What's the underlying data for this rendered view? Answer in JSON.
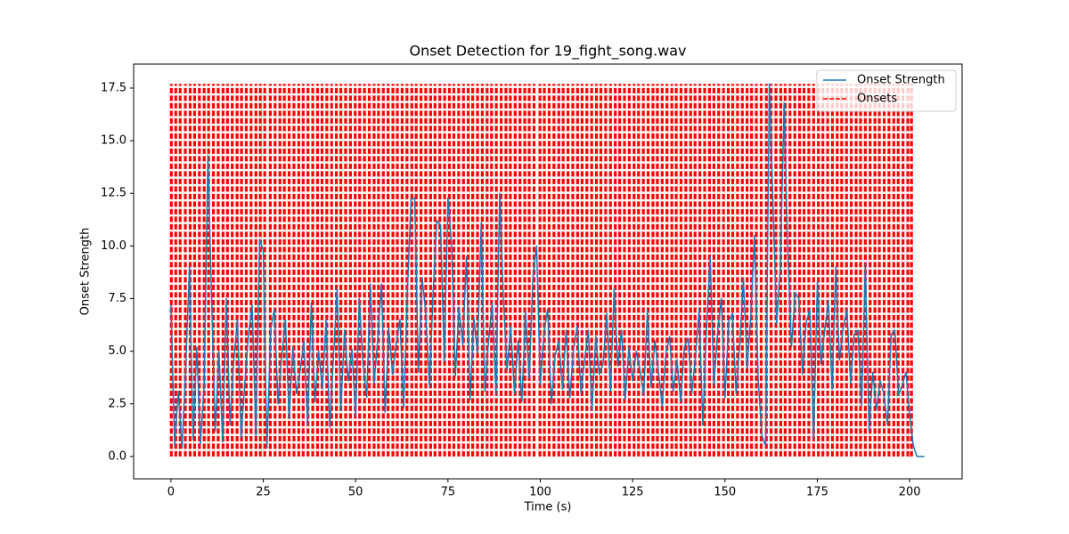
{
  "chart_data": {
    "type": "line",
    "title": "Onset Detection for 19_fight_song.wav",
    "xlabel": "Time (s)",
    "ylabel": "Onset Strength",
    "xlim": [
      -10.1,
      214.2
    ],
    "ylim": [
      -1.06,
      18.64
    ],
    "xticks": [
      0,
      25,
      50,
      75,
      100,
      125,
      150,
      175,
      200
    ],
    "yticks": [
      {
        "value": 0,
        "label": "0.0"
      },
      2.5,
      {
        "value": 5,
        "label": "5.0"
      },
      7.5,
      {
        "value": 10,
        "label": "10.0"
      },
      12.5,
      {
        "value": 15,
        "label": "15.0"
      },
      17.5
    ],
    "legend": "upper right",
    "x": [
      0,
      1,
      2,
      3,
      4,
      5,
      6,
      7,
      8,
      9,
      10,
      11,
      12,
      13,
      14,
      15,
      16,
      17,
      18,
      19,
      20,
      21,
      22,
      23,
      24,
      25,
      26,
      27,
      28,
      29,
      30,
      31,
      32,
      33,
      34,
      35,
      36,
      37,
      38,
      39,
      40,
      41,
      42,
      43,
      44,
      45,
      46,
      47,
      48,
      49,
      50,
      51,
      52,
      53,
      54,
      55,
      56,
      57,
      58,
      59,
      60,
      61,
      62,
      63,
      64,
      65,
      66,
      67,
      68,
      69,
      70,
      71,
      72,
      73,
      74,
      75,
      76,
      77,
      78,
      79,
      80,
      81,
      82,
      83,
      84,
      85,
      86,
      87,
      88,
      89,
      90,
      91,
      92,
      93,
      94,
      95,
      96,
      97,
      98,
      99,
      100,
      101,
      102,
      103,
      104,
      105,
      106,
      107,
      108,
      109,
      110,
      111,
      112,
      113,
      114,
      115,
      116,
      117,
      118,
      119,
      120,
      121,
      122,
      123,
      124,
      125,
      126,
      127,
      128,
      129,
      130,
      131,
      132,
      133,
      134,
      135,
      136,
      137,
      138,
      139,
      140,
      141,
      142,
      143,
      144,
      145,
      146,
      147,
      148,
      149,
      150,
      151,
      152,
      153,
      154,
      155,
      156,
      157,
      158,
      159,
      160,
      161,
      162,
      163,
      164,
      165,
      166,
      167,
      168,
      169,
      170,
      171,
      172,
      173,
      174,
      175,
      176,
      177,
      178,
      179,
      180,
      181,
      182,
      183,
      184,
      185,
      186,
      187,
      188,
      189,
      190,
      191,
      192,
      193,
      194,
      195,
      196,
      197,
      198,
      199,
      200,
      201,
      202,
      203,
      204
    ],
    "series": [
      {
        "name": "Onset Strength",
        "color": "#1f77b4",
        "style": "solid",
        "values": [
          7.2,
          0.5,
          3.1,
          0.4,
          4.2,
          9.0,
          0.8,
          5.2,
          0.6,
          3.5,
          14.3,
          7.5,
          1.2,
          5.0,
          0.7,
          7.5,
          1.5,
          4.5,
          6.5,
          0.9,
          3.5,
          5.8,
          7.2,
          1.0,
          10.3,
          9.8,
          0.4,
          6.0,
          7.0,
          2.5,
          4.8,
          6.5,
          1.8,
          5.2,
          3.0,
          4.1,
          5.5,
          1.5,
          7.3,
          2.6,
          5.0,
          3.2,
          6.5,
          1.4,
          4.7,
          8.0,
          2.2,
          6.0,
          3.6,
          5.1,
          1.9,
          7.5,
          4.4,
          2.8,
          8.2,
          3.5,
          5.6,
          8.2,
          2.1,
          6.1,
          3.9,
          5.4,
          6.5,
          2.3,
          7.7,
          12.2,
          12.3,
          4.0,
          8.5,
          6.8,
          3.3,
          7.9,
          11.2,
          11.0,
          4.5,
          12.3,
          10.0,
          3.8,
          7.1,
          5.3,
          9.5,
          2.7,
          6.6,
          4.9,
          11.1,
          3.1,
          5.5,
          7.3,
          2.9,
          12.5,
          7.5,
          4.1,
          6.2,
          3.0,
          5.5,
          2.6,
          6.9,
          3.7,
          8.5,
          10.0,
          3.4,
          5.9,
          7.0,
          2.5,
          4.8,
          5.5,
          3.2,
          6.0,
          2.8,
          5.1,
          6.2,
          3.0,
          4.6,
          6.0,
          2.2,
          5.7,
          3.9,
          4.4,
          6.8,
          3.1,
          8.0,
          4.3,
          6.0,
          2.7,
          5.2,
          3.6,
          5.0,
          4.1,
          2.9,
          7.0,
          3.3,
          5.5,
          4.0,
          2.4,
          4.9,
          5.7,
          3.1,
          4.6,
          2.6,
          5.2,
          5.6,
          3.0,
          4.7,
          7.0,
          1.5,
          6.1,
          9.5,
          3.4,
          5.9,
          7.5,
          2.8,
          6.4,
          6.8,
          3.0,
          5.3,
          8.5,
          4.2,
          6.7,
          10.5,
          3.6,
          1.0,
          0.5,
          17.7,
          12.0,
          6.3,
          9.1,
          16.8,
          9.7,
          5.2,
          7.8,
          7.5,
          3.9,
          6.4,
          7.0,
          0.8,
          8.3,
          4.4,
          6.0,
          7.4,
          3.2,
          9.0,
          4.6,
          6.1,
          7.0,
          3.5,
          5.8,
          6.0,
          2.4,
          9.2,
          1.2,
          4.0,
          2.2,
          3.6,
          3.0,
          1.5,
          5.8,
          6.0,
          2.9,
          3.4,
          4.0,
          2.0,
          0.5,
          0,
          0,
          0
        ]
      },
      {
        "name": "Onsets",
        "color": "#ff0000",
        "style": "dashed",
        "x": [
          0.1,
          1.3,
          2.5,
          3.9,
          5.2,
          6.4,
          7.7,
          9.0,
          10.2,
          11.5,
          12.8,
          14.1,
          15.3,
          16.6,
          17.9,
          19.1,
          20.4,
          21.7,
          23.0,
          24.2,
          25.4,
          26.9,
          28.2,
          29.5,
          30.7,
          32.0,
          33.3,
          34.6,
          35.8,
          37.1,
          38.4,
          39.7,
          40.9,
          42.2,
          43.5,
          44.8,
          46.0,
          47.3,
          48.6,
          49.9,
          51.1,
          52.4,
          53.7,
          55.0,
          56.2,
          57.5,
          58.8,
          60.1,
          61.3,
          62.6,
          63.9,
          65.2,
          66.4,
          67.7,
          69.0,
          70.3,
          71.5,
          72.8,
          74.1,
          75.4,
          76.6,
          77.9,
          79.2,
          80.5,
          81.7,
          83.0,
          84.3,
          85.6,
          86.8,
          88.1,
          89.4,
          90.7,
          91.9,
          93.2,
          94.5,
          95.8,
          97.0,
          98.3,
          99.9,
          101.1,
          102.4,
          103.7,
          105.0,
          106.2,
          107.5,
          108.8,
          110.1,
          111.3,
          112.6,
          113.9,
          115.2,
          116.4,
          117.7,
          119.0,
          120.3,
          121.5,
          122.8,
          124.1,
          125.4,
          126.6,
          127.9,
          129.2,
          130.5,
          131.7,
          133.0,
          134.3,
          135.6,
          136.8,
          138.1,
          139.4,
          140.7,
          141.9,
          143.2,
          144.5,
          145.8,
          147.0,
          148.3,
          149.6,
          150.9,
          152.1,
          153.4,
          154.7,
          156.0,
          157.2,
          158.5,
          159.8,
          161.2,
          162.5,
          163.8,
          165.1,
          166.3,
          167.6,
          168.9,
          170.2,
          171.4,
          172.7,
          174.0,
          175.3,
          176.5,
          177.8,
          179.1,
          180.4,
          181.6,
          182.9,
          184.2,
          185.5,
          186.7,
          188.0,
          189.3,
          190.6,
          191.8,
          193.1,
          194.4,
          195.7,
          196.9,
          198.2,
          199.5,
          200.5
        ]
      }
    ]
  }
}
